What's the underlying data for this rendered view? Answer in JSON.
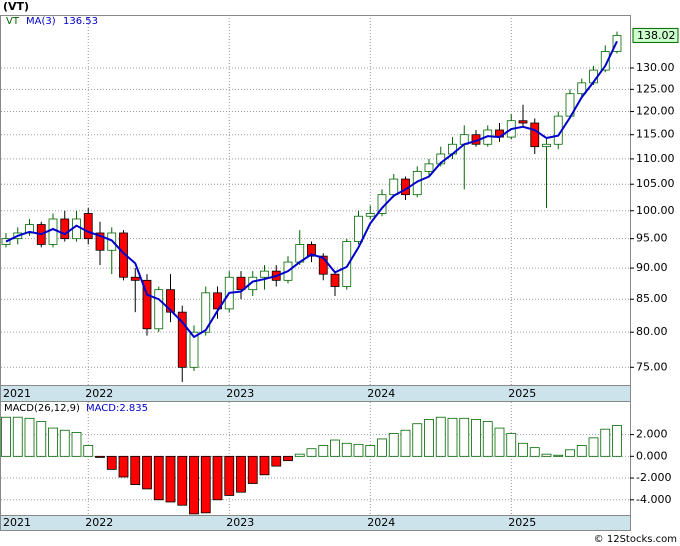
{
  "title": "(VT)",
  "footer": "© 12Stocks.com",
  "chart_data": [
    {
      "type": "candlestick",
      "log_scale": true,
      "grid": true,
      "symbol": "VT",
      "ma_name": "MA(3)",
      "up_color": "#006600",
      "down_color": "#ff0000",
      "ma_color": "#0000cc",
      "categories": [
        "2021",
        null,
        null,
        null,
        null,
        null,
        null,
        "2022",
        null,
        null,
        null,
        null,
        null,
        null,
        null,
        null,
        null,
        null,
        null,
        "2023",
        null,
        null,
        null,
        null,
        null,
        null,
        null,
        null,
        null,
        null,
        null,
        "2024",
        null,
        null,
        null,
        null,
        null,
        null,
        null,
        null,
        null,
        null,
        null,
        "2025",
        null,
        null,
        null,
        null,
        null,
        null,
        null,
        null,
        null
      ],
      "open": [
        94,
        95,
        96,
        97.5,
        94,
        98.5,
        95,
        99.5,
        96,
        93,
        96,
        88.5,
        88,
        80.5,
        86.5,
        83,
        75,
        80,
        86,
        83.5,
        88.5,
        86.5,
        88.5,
        89.5,
        88,
        91,
        94,
        92,
        89,
        87,
        94.5,
        99,
        99.5,
        103,
        106,
        103,
        107.5,
        109,
        111,
        113,
        115,
        113,
        116,
        114.5,
        118,
        117.5,
        112.5,
        113,
        119,
        124,
        126.5,
        129.5,
        134
      ],
      "high": [
        96,
        97,
        98.5,
        98,
        99.5,
        100,
        100,
        100.5,
        98,
        97,
        96.5,
        90,
        89,
        87,
        89,
        84,
        81,
        87,
        87,
        89.5,
        89.5,
        89.5,
        90.5,
        90.5,
        92,
        96.5,
        94.5,
        92.5,
        89.5,
        95,
        100,
        101,
        104,
        107,
        106.5,
        108.5,
        110,
        112.5,
        114.5,
        117,
        116,
        117,
        117.5,
        119.5,
        121.5,
        118.5,
        114.5,
        120,
        125,
        127.5,
        130.5,
        135.5,
        139
      ],
      "low": [
        93.5,
        94,
        95.5,
        93.5,
        93.5,
        94.5,
        94.5,
        94,
        90.5,
        89,
        88,
        83,
        79.5,
        80,
        81.5,
        73,
        74.5,
        79.5,
        82,
        83,
        85,
        85.5,
        86.5,
        87,
        87.5,
        90.5,
        91,
        88,
        85.5,
        86.5,
        94,
        98.5,
        99,
        102.5,
        102,
        102.5,
        106.5,
        108.5,
        110,
        104,
        112.5,
        112.5,
        113.5,
        114,
        116.5,
        111,
        100.5,
        112,
        118.5,
        123.5,
        126,
        129,
        133.5
      ],
      "close": [
        95,
        96,
        97.5,
        94,
        98.5,
        95,
        98.5,
        95,
        93,
        96,
        88.5,
        88,
        80.5,
        86.5,
        83,
        75,
        80,
        86,
        83.5,
        88.5,
        86.5,
        88.5,
        89.5,
        88,
        91,
        94,
        92,
        89,
        87,
        94.5,
        99,
        99.5,
        103,
        106,
        103,
        107.5,
        109,
        111,
        113,
        115,
        113,
        116,
        114.5,
        118,
        117.5,
        112.5,
        113,
        119,
        124,
        126.5,
        129.5,
        134,
        138.02
      ],
      "ma": [
        94.5,
        95.5,
        96.2,
        95.8,
        96.7,
        95.8,
        97.3,
        96.2,
        95.5,
        94.7,
        92.5,
        90.8,
        85.7,
        85,
        83.3,
        81.5,
        79.3,
        80.3,
        83.2,
        86,
        86.2,
        87.8,
        88.2,
        88.7,
        89.5,
        91,
        92.3,
        91.7,
        89.3,
        90.2,
        93.5,
        97.7,
        100.5,
        102.8,
        104,
        105.5,
        106.5,
        109.2,
        111,
        113,
        113.7,
        114.7,
        114.5,
        116.2,
        116.7,
        116,
        114.3,
        114.8,
        118.7,
        123.2,
        126.7,
        130.5,
        136.53
      ],
      "ylim": [
        72.6,
        143.3
      ],
      "yticks": [
        {
          "value": 75,
          "label": "75.00"
        },
        {
          "value": 80,
          "label": "80.00"
        },
        {
          "value": 85,
          "label": "85.00"
        },
        {
          "value": 90,
          "label": "90.00"
        },
        {
          "value": 95,
          "label": "95.00"
        },
        {
          "value": 100,
          "label": "100.00"
        },
        {
          "value": 105,
          "label": "105.00"
        },
        {
          "value": 110,
          "label": "110.00"
        },
        {
          "value": 115,
          "label": "115.00"
        },
        {
          "value": 120,
          "label": "120.00"
        },
        {
          "value": 125,
          "label": "125.00"
        },
        {
          "value": 130,
          "label": "130.00"
        }
      ]
    },
    {
      "type": "bar",
      "grid": true,
      "name": "MACD(26,12,9)",
      "value_label": "MACD:2.835",
      "up_color": "#006600",
      "down_color": "#ff0000",
      "categories": [
        "2021",
        null,
        null,
        null,
        null,
        null,
        null,
        "2022",
        null,
        null,
        null,
        null,
        null,
        null,
        null,
        null,
        null,
        null,
        null,
        "2023",
        null,
        null,
        null,
        null,
        null,
        null,
        null,
        null,
        null,
        null,
        null,
        "2024",
        null,
        null,
        null,
        null,
        null,
        null,
        null,
        null,
        null,
        null,
        null,
        "2025",
        null,
        null,
        null,
        null,
        null,
        null,
        null,
        null,
        null
      ],
      "values": [
        3.6,
        3.6,
        3.5,
        3.2,
        2.6,
        2.4,
        2.2,
        1.0,
        -0.1,
        -1.2,
        -1.9,
        -2.6,
        -3.0,
        -4.0,
        -4.2,
        -4.5,
        -5.3,
        -5.2,
        -4.0,
        -3.6,
        -3.3,
        -2.5,
        -1.7,
        -0.9,
        -0.4,
        0.2,
        0.7,
        1.0,
        1.5,
        1.2,
        1.1,
        1.0,
        1.6,
        2.1,
        2.4,
        3.0,
        3.4,
        3.6,
        3.5,
        3.5,
        3.4,
        3.2,
        2.6,
        2.1,
        1.2,
        0.8,
        0.2,
        0.1,
        0.6,
        1.0,
        1.7,
        2.5,
        2.835
      ],
      "ylim": [
        -5.4,
        5.0
      ],
      "yticks": [
        {
          "value": 2,
          "label": "2.000"
        },
        {
          "value": 0,
          "label": "0.000"
        },
        {
          "value": -2,
          "label": "-2.000"
        },
        {
          "value": -4,
          "label": "-4.000"
        }
      ]
    }
  ]
}
